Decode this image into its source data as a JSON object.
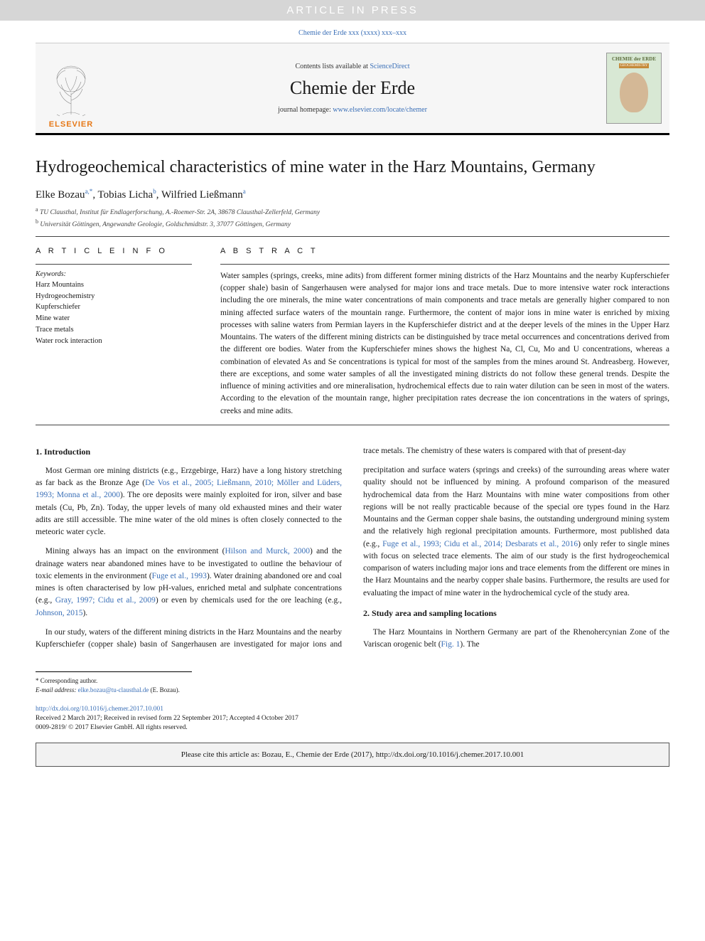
{
  "banner": {
    "text": "ARTICLE IN PRESS"
  },
  "journal_ref": {
    "text": "Chemie der Erde xxx (xxxx) xxx–xxx"
  },
  "header": {
    "contents_prefix": "Contents lists available at ",
    "contents_link": "ScienceDirect",
    "journal_title": "Chemie der Erde",
    "homepage_prefix": "journal homepage: ",
    "homepage_link": "www.elsevier.com/locate/chemer",
    "elsevier": "ELSEVIER",
    "cover_title": "CHEMIE\nder ERDE",
    "cover_sub": "GEOCHEMISTRY"
  },
  "article": {
    "title": "Hydrogeochemical characteristics of mine water in the Harz Mountains, Germany",
    "authors_html": "Elke Bozau<sup>a,*</sup>, Tobias Licha<sup>b</sup>, Wilfried Ließmann<sup>a</sup>",
    "affiliations": [
      {
        "sup": "a",
        "text": "TU Clausthal, Institut für Endlagerforschung, A.-Roemer-Str. 2A, 38678 Clausthal-Zellerfeld, Germany"
      },
      {
        "sup": "b",
        "text": "Universität Göttingen, Angewandte Geologie, Goldschmidtstr. 3, 37077 Göttingen, Germany"
      }
    ]
  },
  "info": {
    "heading": "A R T I C L E  I N F O",
    "kw_label": "Keywords:",
    "keywords": [
      "Harz Mountains",
      "Hydrogeochemistry",
      "Kupferschiefer",
      "Mine water",
      "Trace metals",
      "Water rock interaction"
    ]
  },
  "abstract": {
    "heading": "A B S T R A C T",
    "text": "Water samples (springs, creeks, mine adits) from different former mining districts of the Harz Mountains and the nearby Kupferschiefer (copper shale) basin of Sangerhausen were analysed for major ions and trace metals. Due to more intensive water rock interactions including the ore minerals, the mine water concentrations of main components and trace metals are generally higher compared to non mining affected surface waters of the mountain range. Furthermore, the content of major ions in mine water is enriched by mixing processes with saline waters from Permian layers in the Kupferschiefer district and at the deeper levels of the mines in the Upper Harz Mountains. The waters of the different mining districts can be distinguished by trace metal occurrences and concentrations derived from the different ore bodies. Water from the Kupferschiefer mines shows the highest Na, Cl, Cu, Mo and U concentrations, whereas a combination of elevated As and Se concentrations is typical for most of the samples from the mines around St. Andreasberg. However, there are exceptions, and some water samples of all the investigated mining districts do not follow these general trends. Despite the influence of mining activities and ore mineralisation, hydrochemical effects due to rain water dilution can be seen in most of the waters. According to the elevation of the mountain range, higher precipitation rates decrease the ion concentrations in the waters of springs, creeks and mine adits."
  },
  "body": {
    "sec1_title": "1. Introduction",
    "sec1_p1_a": "Most German ore mining districts (e.g., Erzgebirge, Harz) have a long history stretching as far back as the Bronze Age (",
    "sec1_p1_link1": "De Vos et al., 2005; Ließmann, 2010; Möller and Lüders, 1993; Monna et al., 2000",
    "sec1_p1_b": "). The ore deposits were mainly exploited for iron, silver and base metals (Cu, Pb, Zn). Today, the upper levels of many old exhausted mines and their water adits are still accessible. The mine water of the old mines is often closely connected to the meteoric water cycle.",
    "sec1_p2_a": "Mining always has an impact on the environment (",
    "sec1_p2_link1": "Hilson and Murck, 2000",
    "sec1_p2_b": ") and the drainage waters near abandoned mines have to be investigated to outline the behaviour of toxic elements in the environment (",
    "sec1_p2_link2": "Fuge et al., 1993",
    "sec1_p2_c": "). Water draining abandoned ore and coal mines is often characterised by low pH-values, enriched metal and sulphate concentrations (e.g., ",
    "sec1_p2_link3": "Gray, 1997; Cidu et al., 2009",
    "sec1_p2_d": ") or even by chemicals used for the ore leaching (e.g., ",
    "sec1_p2_link4": "Johnson, 2015",
    "sec1_p2_e": ").",
    "sec1_p3": "In our study, waters of the different mining districts in the Harz Mountains and the nearby Kupferschiefer (copper shale) basin of Sangerhausen are investigated for major ions and trace metals. The chemistry of these waters is compared with that of present-day",
    "sec1_p4_a": "precipitation and surface waters (springs and creeks) of the surrounding areas where water quality should not be influenced by mining. A profound comparison of the measured hydrochemical data from the Harz Mountains with mine water compositions from other regions will be not really practicable because of the special ore types found in the Harz Mountains and the German copper shale basins, the outstanding underground mining system and the relatively high regional precipitation amounts. Furthermore, most published data (e.g., ",
    "sec1_p4_link1": "Fuge et al., 1993; Cidu et al., 2014; Desbarats et al., 2016",
    "sec1_p4_b": ") only refer to single mines with focus on selected trace elements. The aim of our study is the first hydrogeochemical comparison of waters including major ions and trace elements from the different ore mines in the Harz Mountains and the nearby copper shale basins. Furthermore, the results are used for evaluating the impact of mine water in the hydrochemical cycle of the study area.",
    "sec2_title": "2. Study area and sampling locations",
    "sec2_p1_a": "The Harz Mountains in Northern Germany are part of the Rhenohercynian Zone of the Variscan orogenic belt (",
    "sec2_p1_link1": "Fig. 1",
    "sec2_p1_b": "). The"
  },
  "footnotes": {
    "corr": "* Corresponding author.",
    "email_label": "E-mail address: ",
    "email": "elke.bozau@tu-clausthal.de",
    "email_suffix": " (E. Bozau)."
  },
  "doi": {
    "link": "http://dx.doi.org/10.1016/j.chemer.2017.10.001",
    "received": "Received 2 March 2017; Received in revised form 22 September 2017; Accepted 4 October 2017",
    "copyright": "0009-2819/ © 2017 Elsevier GmbH. All rights reserved."
  },
  "citebox": {
    "text": "Please cite this article as: Bozau, E., Chemie der Erde (2017), http://dx.doi.org/10.1016/j.chemer.2017.10.001"
  },
  "colors": {
    "link": "#3a6fb7",
    "banner_bg": "#d6d6d6",
    "orange": "#e67817"
  }
}
